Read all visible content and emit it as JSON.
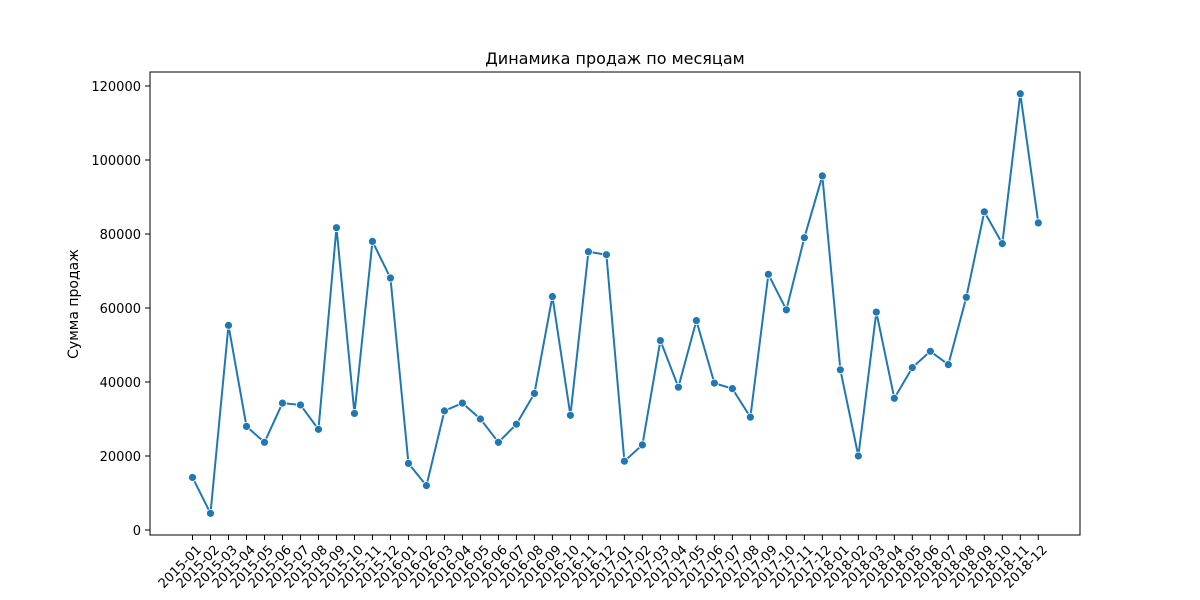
{
  "chart_data": {
    "type": "line",
    "title": "Динамика продаж по месяцам",
    "xlabel": "",
    "ylabel": "Сумма продаж",
    "ylim": [
      0,
      120000
    ],
    "yticks": [
      0,
      20000,
      40000,
      60000,
      80000,
      100000,
      120000
    ],
    "grid": false,
    "color": "#1f77b4",
    "marker": "circle",
    "categories": [
      "2015-01",
      "2015-02",
      "2015-03",
      "2015-04",
      "2015-05",
      "2015-06",
      "2015-07",
      "2015-08",
      "2015-09",
      "2015-10",
      "2015-11",
      "2015-12",
      "2016-01",
      "2016-02",
      "2016-03",
      "2016-04",
      "2016-05",
      "2016-06",
      "2016-07",
      "2016-08",
      "2016-09",
      "2016-10",
      "2016-11",
      "2016-12",
      "2017-01",
      "2017-02",
      "2017-03",
      "2017-04",
      "2017-05",
      "2017-06",
      "2017-07",
      "2017-08",
      "2017-09",
      "2017-10",
      "2017-11",
      "2017-12",
      "2018-01",
      "2018-02",
      "2018-03",
      "2018-04",
      "2018-05",
      "2018-06",
      "2018-07",
      "2018-08",
      "2018-09",
      "2018-10",
      "2018-11",
      "2018-12"
    ],
    "values": [
      14200,
      4500,
      55300,
      28000,
      23700,
      34300,
      33800,
      27200,
      81700,
      31500,
      78000,
      68100,
      18000,
      12000,
      32200,
      34300,
      30000,
      23700,
      28600,
      36900,
      63100,
      31000,
      75200,
      74400,
      18600,
      23000,
      51200,
      38600,
      56600,
      39700,
      38200,
      30500,
      69100,
      59500,
      79000,
      95700,
      43300,
      20000,
      58900,
      35600,
      43900,
      48300,
      44700,
      62900,
      86000,
      77400,
      117900,
      83000
    ]
  }
}
